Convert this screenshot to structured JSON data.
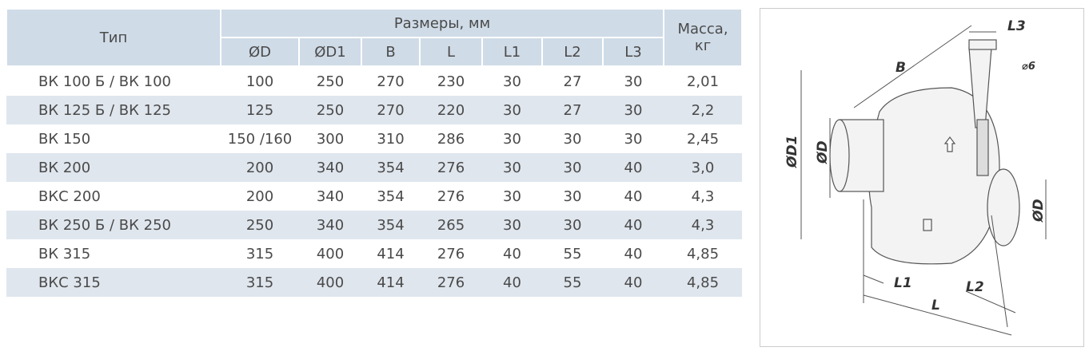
{
  "table": {
    "header_top": [
      "Тип",
      "Размеры, мм",
      "Масса, кг"
    ],
    "header_sub": [
      "ØD",
      "ØD1",
      "B",
      "L",
      "L1",
      "L2",
      "L3"
    ],
    "rows": [
      [
        "ВК 100 Б / ВК 100",
        "100",
        "250",
        "270",
        "230",
        "30",
        "27",
        "30",
        "2,01"
      ],
      [
        "ВК 125 Б / ВК 125",
        "125",
        "250",
        "270",
        "220",
        "30",
        "27",
        "30",
        "2,2"
      ],
      [
        "ВК 150",
        "150 /160",
        "300",
        "310",
        "286",
        "30",
        "30",
        "30",
        "2,45"
      ],
      [
        "ВК 200",
        "200",
        "340",
        "354",
        "276",
        "30",
        "30",
        "40",
        "3,0"
      ],
      [
        "ВКС 200",
        "200",
        "340",
        "354",
        "276",
        "30",
        "30",
        "40",
        "4,3"
      ],
      [
        "ВК 250 Б / ВК 250",
        "250",
        "340",
        "354",
        "265",
        "30",
        "30",
        "40",
        "4,3"
      ],
      [
        "ВК 315",
        "315",
        "400",
        "414",
        "276",
        "40",
        "55",
        "40",
        "4,85"
      ],
      [
        "ВКС 315",
        "315",
        "400",
        "414",
        "276",
        "40",
        "55",
        "40",
        "4,85"
      ]
    ]
  },
  "drawing": {
    "labels": {
      "l3": "L3",
      "b": "B",
      "hole": "⌀6",
      "d1": "ØD1",
      "d_in": "ØD",
      "d_out": "ØD",
      "l1": "L1",
      "l2": "L2",
      "l": "L"
    }
  }
}
